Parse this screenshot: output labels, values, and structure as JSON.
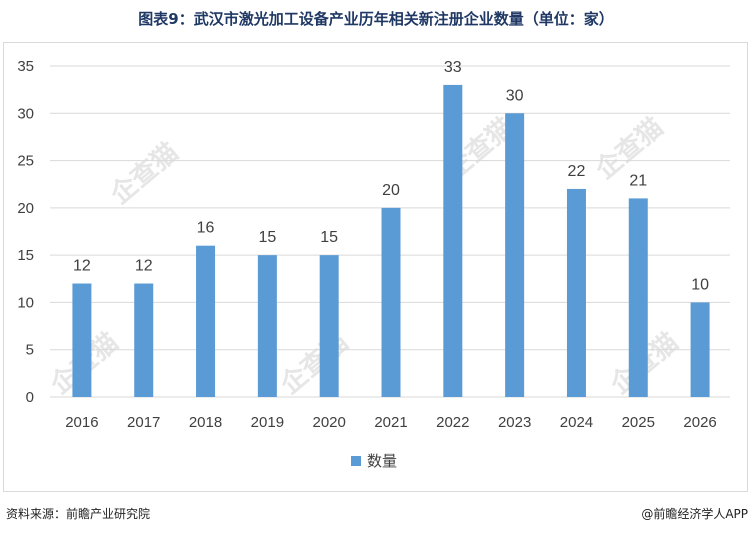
{
  "title": "图表9：武汉市激光加工设备产业历年相关新注册企业数量（单位：家）",
  "source": "资料来源：前瞻产业研究院",
  "credit": "@前瞻经济学人APP",
  "watermark": "企查猫",
  "colors": {
    "bar": "#5b9bd5",
    "grid": "#d9d9d9",
    "text": "#404040"
  },
  "chart_data": {
    "type": "bar",
    "categories": [
      "2016",
      "2017",
      "2018",
      "2019",
      "2020",
      "2021",
      "2022",
      "2023",
      "2024",
      "2025",
      "2026"
    ],
    "series": [
      {
        "name": "数量",
        "values": [
          12,
          12,
          16,
          15,
          15,
          20,
          33,
          30,
          22,
          21,
          10
        ]
      }
    ],
    "y_ticks": [
      0,
      5,
      10,
      15,
      20,
      25,
      30,
      35
    ],
    "ylim": [
      0,
      35
    ],
    "grid": true,
    "legend": "bottom"
  }
}
